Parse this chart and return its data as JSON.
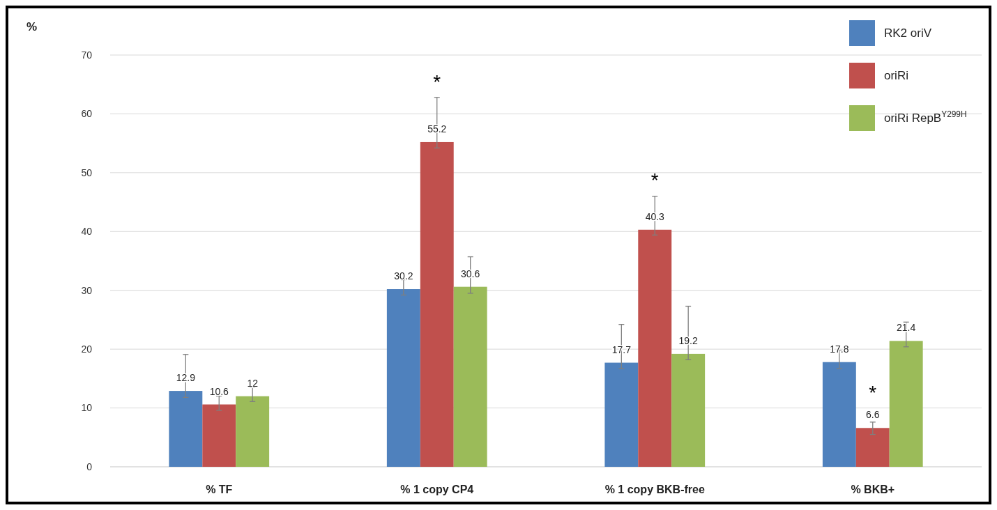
{
  "chart_data": {
    "type": "bar",
    "ylabel": "%",
    "categories": [
      "% TF",
      "% 1 copy CP4",
      "% 1 copy BKB-free",
      "% BKB+"
    ],
    "series": [
      {
        "name": "RK2 oriV",
        "color": "#4f81bd",
        "values": [
          12.9,
          30.2,
          17.7,
          17.8
        ],
        "errors": [
          [
            11.8,
            19.1
          ],
          [
            29.2,
            31.8
          ],
          [
            16.7,
            24.2
          ],
          [
            16.7,
            19.8
          ]
        ]
      },
      {
        "name": "oriRi",
        "color": "#c0504d",
        "values": [
          10.6,
          55.2,
          40.3,
          6.6
        ],
        "errors": [
          [
            9.6,
            12.0
          ],
          [
            54.2,
            62.8
          ],
          [
            39.4,
            46.0
          ],
          [
            5.5,
            7.6
          ]
        ]
      },
      {
        "name": "oriRi RepB$^{Y299H}$",
        "color": "#9bbb59",
        "values": [
          12,
          30.6,
          19.2,
          21.4
        ],
        "errors": [
          [
            11.1,
            13.5
          ],
          [
            29.5,
            35.7
          ],
          [
            18.2,
            27.3
          ],
          [
            20.4,
            24.6
          ]
        ]
      }
    ],
    "ylim": [
      0,
      70
    ],
    "yticks": [
      0,
      10,
      20,
      30,
      40,
      50,
      60,
      70
    ],
    "grid": "y",
    "legend": "top right",
    "data_labels": true,
    "annotations": [
      {
        "text": "*",
        "x": "% 1 copy CP4",
        "y": 55.2
      },
      {
        "text": "*",
        "x": "% 1 copy BKB-free",
        "y": 40.3
      },
      {
        "text": "*",
        "x": "% BKB+",
        "y": 6.6
      }
    ]
  }
}
